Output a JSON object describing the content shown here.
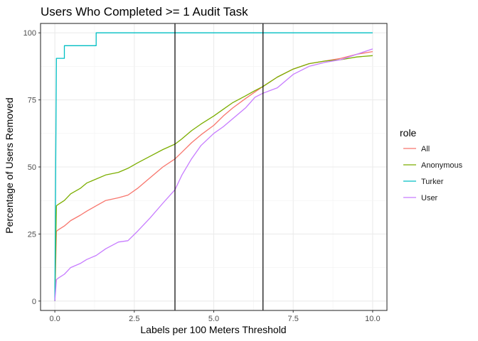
{
  "chart_data": {
    "type": "line",
    "title": "Users Who Completed >= 1 Audit Task",
    "xlabel": "Labels per 100 Meters Threshold",
    "ylabel": "Percentage of Users Removed",
    "xlim": [
      -0.45,
      10.45
    ],
    "ylim": [
      -3.5,
      103.5
    ],
    "xticks": [
      0,
      2.5,
      5,
      7.5,
      10
    ],
    "xtick_labels": [
      "0.0",
      "2.5",
      "5.0",
      "7.5",
      "10.0"
    ],
    "yticks": [
      0,
      25,
      50,
      75,
      100
    ],
    "ytick_labels": [
      "0",
      "25",
      "50",
      "75",
      "100"
    ],
    "grid": true,
    "legend_title": "role",
    "legend_position": "right",
    "vlines": [
      3.78,
      6.55
    ],
    "series": [
      {
        "name": "All",
        "color": "#F8766D",
        "x": [
          0.0,
          0.05,
          0.1,
          0.3,
          0.5,
          0.8,
          1.0,
          1.3,
          1.6,
          2.0,
          2.3,
          2.6,
          3.0,
          3.4,
          3.78,
          4.0,
          4.3,
          4.6,
          5.0,
          5.3,
          5.6,
          6.0,
          6.3,
          6.55,
          7.0,
          7.5,
          8.0,
          8.5,
          9.0,
          9.5,
          10.0
        ],
        "y": [
          0,
          26,
          26.5,
          28,
          30,
          32,
          33.5,
          35.5,
          37.5,
          38.5,
          39.5,
          42,
          46,
          50,
          53,
          55.5,
          59,
          62,
          65.5,
          69,
          72,
          75.5,
          78,
          80,
          83.5,
          86.5,
          88.5,
          89.5,
          90.5,
          92,
          93
        ]
      },
      {
        "name": "Anonymous",
        "color": "#7CAE00",
        "x": [
          0.0,
          0.05,
          0.1,
          0.3,
          0.5,
          0.8,
          1.0,
          1.3,
          1.6,
          2.0,
          2.3,
          2.6,
          3.0,
          3.4,
          3.78,
          4.0,
          4.3,
          4.6,
          5.0,
          5.3,
          5.6,
          6.0,
          6.3,
          6.55,
          7.0,
          7.5,
          8.0,
          8.5,
          9.0,
          9.5,
          10.0
        ],
        "y": [
          0,
          35.5,
          36,
          37.5,
          40,
          42,
          44,
          45.5,
          47,
          48,
          49.5,
          51.5,
          54,
          56.5,
          58.5,
          60.5,
          63.5,
          66,
          69,
          71.5,
          74,
          76.5,
          78.5,
          80,
          83.5,
          86.5,
          88.5,
          89.5,
          90,
          91,
          91.5
        ]
      },
      {
        "name": "Turker",
        "color": "#00BFC4",
        "x": [
          0.0,
          0.05,
          0.3,
          0.3,
          1.3,
          1.3,
          10.0
        ],
        "y": [
          0,
          90.5,
          90.5,
          95.2,
          95.2,
          100,
          100
        ]
      },
      {
        "name": "User",
        "color": "#C77CFF",
        "x": [
          0.0,
          0.05,
          0.1,
          0.3,
          0.5,
          0.8,
          1.0,
          1.3,
          1.6,
          2.0,
          2.3,
          2.6,
          3.0,
          3.4,
          3.78,
          4.0,
          4.3,
          4.6,
          5.0,
          5.3,
          5.6,
          6.0,
          6.3,
          6.55,
          7.0,
          7.5,
          8.0,
          8.5,
          9.0,
          9.5,
          10.0
        ],
        "y": [
          0,
          8,
          8.5,
          10,
          12.5,
          14,
          15.5,
          17,
          19.5,
          22,
          22.5,
          26,
          31,
          36.5,
          41.5,
          47,
          53,
          58,
          62.5,
          65,
          68,
          72,
          76,
          77.5,
          79.5,
          84.5,
          87.5,
          89,
          90,
          92,
          94
        ]
      }
    ]
  }
}
